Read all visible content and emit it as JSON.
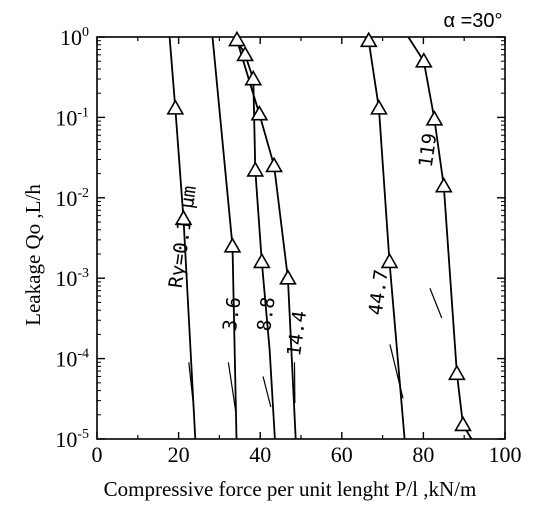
{
  "chart_data": {
    "type": "line",
    "title": "",
    "annotation": "α =30°",
    "xlabel": "Compressive force per unit lenght  P/l ,kN/m",
    "ylabel": "Leakage  Qo ,L/h",
    "xscale": "linear",
    "yscale": "log",
    "xlim": [
      0,
      100
    ],
    "ylim": [
      1e-05,
      1
    ],
    "xticks": [
      {
        "value": 0,
        "label": "0"
      },
      {
        "value": 20,
        "label": "20"
      },
      {
        "value": 40,
        "label": "40"
      },
      {
        "value": 60,
        "label": "60"
      },
      {
        "value": 80,
        "label": "80"
      },
      {
        "value": 100,
        "label": "100"
      }
    ],
    "yticks": [
      {
        "value": 1e-05,
        "base": "10",
        "exp": "-5"
      },
      {
        "value": 0.0001,
        "base": "10",
        "exp": "-4"
      },
      {
        "value": 0.001,
        "base": "10",
        "exp": "-3"
      },
      {
        "value": 0.01,
        "base": "10",
        "exp": "-2"
      },
      {
        "value": 0.1,
        "base": "10",
        "exp": "-1"
      },
      {
        "value": 1,
        "base": "10",
        "exp": "0"
      }
    ],
    "grid": false,
    "marker": "triangle-open",
    "series": [
      {
        "name": "Ry=0.1 μm",
        "points": [
          [
            17.8,
            1
          ],
          [
            19.2,
            0.13
          ],
          [
            21.2,
            0.0055
          ],
          [
            24.1,
            1e-05
          ]
        ],
        "markers": [
          [
            19.2,
            0.13
          ],
          [
            21.2,
            0.0055
          ]
        ]
      },
      {
        "name": "3.6",
        "points": [
          [
            28.3,
            1
          ],
          [
            33.2,
            0.0025
          ],
          [
            34.2,
            1e-05
          ]
        ],
        "markers": [
          [
            33.2,
            0.0025
          ]
        ]
      },
      {
        "name": "8.8",
        "points": [
          [
            33.9,
            1
          ],
          [
            36.3,
            0.6
          ],
          [
            38.3,
            0.3
          ],
          [
            38.8,
            0.022
          ],
          [
            40.4,
            0.0016
          ],
          [
            42.3,
            0.00013
          ],
          [
            43.6,
            1e-05
          ]
        ],
        "markers": [
          [
            36.3,
            0.6
          ],
          [
            38.3,
            0.3
          ],
          [
            38.8,
            0.022
          ],
          [
            40.4,
            0.0016
          ]
        ]
      },
      {
        "name": "14.4",
        "points": [
          [
            34.3,
            0.92
          ],
          [
            39.8,
            0.11
          ],
          [
            43.4,
            0.025
          ],
          [
            46.8,
            0.001
          ],
          [
            48.7,
            1e-05
          ]
        ],
        "markers": [
          [
            34.3,
            0.92
          ],
          [
            39.8,
            0.11
          ],
          [
            43.4,
            0.025
          ],
          [
            46.8,
            0.001
          ]
        ]
      },
      {
        "name": "44.7",
        "points": [
          [
            66.6,
            0.9
          ],
          [
            69.1,
            0.13
          ],
          [
            71.7,
            0.0016
          ],
          [
            75.4,
            1e-05
          ]
        ],
        "markers": [
          [
            66.6,
            0.9
          ],
          [
            69.1,
            0.13
          ],
          [
            71.7,
            0.0016
          ]
        ]
      },
      {
        "name": "119",
        "points": [
          [
            76.3,
            1
          ],
          [
            80.1,
            0.5
          ],
          [
            82.7,
            0.095
          ],
          [
            85.0,
            0.014
          ],
          [
            88.2,
            6.5e-05
          ],
          [
            89.7,
            1.5e-05
          ],
          [
            91.8,
            1e-05
          ]
        ],
        "markers": [
          [
            80.1,
            0.5
          ],
          [
            82.7,
            0.095
          ],
          [
            85.0,
            0.014
          ],
          [
            88.2,
            6.5e-05
          ],
          [
            89.7,
            1.5e-05
          ]
        ]
      }
    ]
  }
}
